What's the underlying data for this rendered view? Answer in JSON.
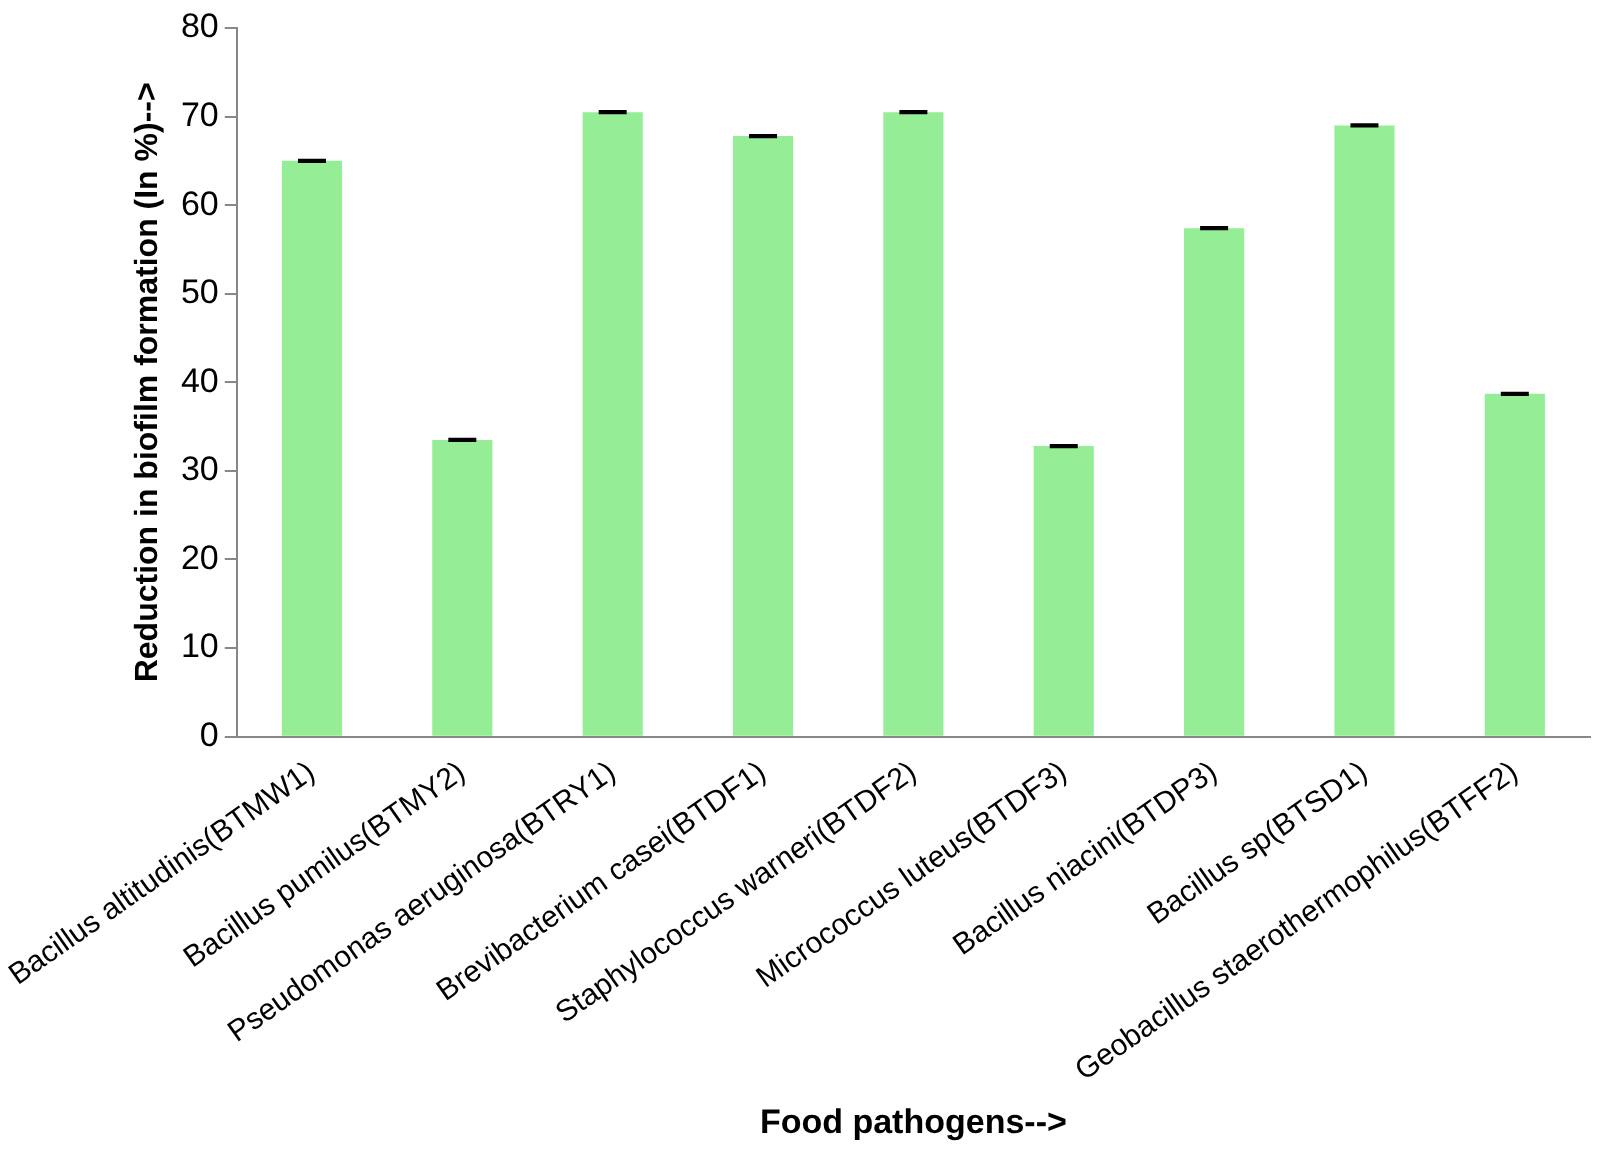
{
  "chart_data": {
    "type": "bar",
    "xlabel": "Food pathogens-->",
    "ylabel": "Reduction in biofilm formation (In %)-->",
    "categories": [
      "Bacillus altitudinis(BTMW1)",
      "Bacillus pumilus(BTMY2)",
      "Pseudomonas aeruginosa(BTRY1)",
      "Brevibacterium casei(BTDF1)",
      "Staphylococcus warneri(BTDF2)",
      "Micrococcus luteus(BTDF3)",
      "Bacillus niacini(BTDP3)",
      "Bacillus sp(BTSD1)",
      "Geobacillus staerothermophilus(BTFF2)"
    ],
    "values": [
      65,
      33.5,
      70.5,
      67.8,
      70.5,
      32.8,
      57.4,
      69,
      38.7
    ],
    "errors": [
      0.1,
      0.1,
      0.1,
      0.1,
      0.1,
      0.1,
      0.1,
      0.1,
      0.1
    ],
    "color": "#95ee95",
    "ylim": [
      0,
      80
    ],
    "yticks": [
      0,
      10,
      20,
      30,
      40,
      50,
      60,
      70,
      80
    ],
    "grid": false,
    "legend": false
  }
}
